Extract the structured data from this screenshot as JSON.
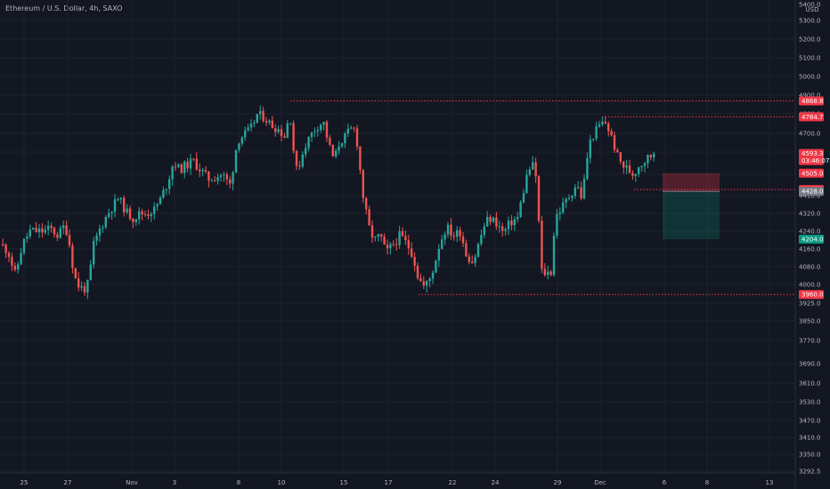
{
  "header": {
    "title": "Ethereum / U.S. Dollar, 4h, SAXO"
  },
  "price_axis": {
    "currency": "USD",
    "ticks": [
      "5400.0",
      "5300.0",
      "5200.0",
      "5100.0",
      "5000.0",
      "4900.0",
      "4800.0",
      "4700.0",
      "4600.0",
      "4500.0",
      "4410.0",
      "4320.0",
      "4240.0",
      "4160.0",
      "4080.0",
      "4000.0",
      "3925.0",
      "3850.0",
      "3770.0",
      "3690.0",
      "3610.0",
      "3530.0",
      "3470.0",
      "3410.0",
      "3350.0",
      "3292.5"
    ]
  },
  "time_axis": {
    "ticks": [
      "25",
      "27",
      "Nov",
      "3",
      "8",
      "10",
      "15",
      "17",
      "22",
      "24",
      "29",
      "Dec",
      "6",
      "8",
      "13"
    ]
  },
  "price_labels": [
    {
      "name": "level-4868",
      "text": "4868.8",
      "color": "#f23645"
    },
    {
      "name": "level-4784",
      "text": "4784.7",
      "color": "#f23645"
    },
    {
      "name": "last-price",
      "text": "4593.3",
      "sub": "03:46:07",
      "color": "#f23645"
    },
    {
      "name": "stop-loss",
      "text": "4505.0",
      "color": "#f23645"
    },
    {
      "name": "level-4435",
      "text": "4435.6",
      "color": "#f23645"
    },
    {
      "name": "entry",
      "text": "4428.0",
      "color": "#787b86"
    },
    {
      "name": "take-profit",
      "text": "4204.0",
      "color": "#089981"
    },
    {
      "name": "level-3960",
      "text": "3960.0",
      "color": "#f23645"
    }
  ],
  "colors": {
    "up": "#26a69a",
    "down": "#ef5350",
    "level": "#f23645",
    "background": "#131722"
  },
  "chart_data": {
    "type": "candlestick",
    "title": "Ethereum / U.S. Dollar, 4h, SAXO",
    "ylabel": "USD",
    "ylim": [
      3292.5,
      5400.0
    ],
    "x_ticks": [
      "25",
      "27",
      "Nov",
      "3",
      "8",
      "10",
      "15",
      "17",
      "22",
      "24",
      "29",
      "Dec",
      "6",
      "8",
      "13"
    ],
    "anchors": [
      {
        "x": 0,
        "close": 4180
      },
      {
        "x": 8,
        "close": 4150
      },
      {
        "x": 16,
        "close": 4040
      },
      {
        "x": 24,
        "close": 4180
      },
      {
        "x": 32,
        "close": 4240
      },
      {
        "x": 40,
        "close": 4240
      },
      {
        "x": 48,
        "close": 4240
      },
      {
        "x": 56,
        "close": 4250
      },
      {
        "x": 64,
        "close": 4220
      },
      {
        "x": 72,
        "close": 4270
      },
      {
        "x": 78,
        "close": 4160
      },
      {
        "x": 82,
        "close": 4040
      },
      {
        "x": 86,
        "close": 4000
      },
      {
        "x": 92,
        "close": 3980
      },
      {
        "x": 98,
        "close": 4000
      },
      {
        "x": 104,
        "close": 4180
      },
      {
        "x": 112,
        "close": 4260
      },
      {
        "x": 120,
        "close": 4320
      },
      {
        "x": 126,
        "close": 4360
      },
      {
        "x": 132,
        "close": 4400
      },
      {
        "x": 140,
        "close": 4330
      },
      {
        "x": 148,
        "close": 4300
      },
      {
        "x": 156,
        "close": 4320
      },
      {
        "x": 164,
        "close": 4320
      },
      {
        "x": 172,
        "close": 4340
      },
      {
        "x": 180,
        "close": 4400
      },
      {
        "x": 188,
        "close": 4480
      },
      {
        "x": 194,
        "close": 4560
      },
      {
        "x": 200,
        "close": 4520
      },
      {
        "x": 208,
        "close": 4540
      },
      {
        "x": 216,
        "close": 4560
      },
      {
        "x": 224,
        "close": 4520
      },
      {
        "x": 232,
        "close": 4480
      },
      {
        "x": 240,
        "close": 4490
      },
      {
        "x": 248,
        "close": 4500
      },
      {
        "x": 254,
        "close": 4470
      },
      {
        "x": 258,
        "close": 4450
      },
      {
        "x": 262,
        "close": 4580
      },
      {
        "x": 266,
        "close": 4660
      },
      {
        "x": 272,
        "close": 4690
      },
      {
        "x": 280,
        "close": 4720
      },
      {
        "x": 288,
        "close": 4800
      },
      {
        "x": 296,
        "close": 4780
      },
      {
        "x": 304,
        "close": 4740
      },
      {
        "x": 312,
        "close": 4720
      },
      {
        "x": 318,
        "close": 4680
      },
      {
        "x": 322,
        "close": 4760
      },
      {
        "x": 326,
        "close": 4780
      },
      {
        "x": 330,
        "close": 4500
      },
      {
        "x": 336,
        "close": 4560
      },
      {
        "x": 342,
        "close": 4640
      },
      {
        "x": 350,
        "close": 4710
      },
      {
        "x": 356,
        "close": 4740
      },
      {
        "x": 362,
        "close": 4760
      },
      {
        "x": 368,
        "close": 4640
      },
      {
        "x": 374,
        "close": 4560
      },
      {
        "x": 380,
        "close": 4650
      },
      {
        "x": 386,
        "close": 4680
      },
      {
        "x": 392,
        "close": 4720
      },
      {
        "x": 398,
        "close": 4720
      },
      {
        "x": 402,
        "close": 4560
      },
      {
        "x": 406,
        "close": 4420
      },
      {
        "x": 410,
        "close": 4320
      },
      {
        "x": 414,
        "close": 4240
      },
      {
        "x": 420,
        "close": 4200
      },
      {
        "x": 426,
        "close": 4220
      },
      {
        "x": 432,
        "close": 4140
      },
      {
        "x": 440,
        "close": 4180
      },
      {
        "x": 448,
        "close": 4220
      },
      {
        "x": 456,
        "close": 4180
      },
      {
        "x": 462,
        "close": 4140
      },
      {
        "x": 468,
        "close": 4040
      },
      {
        "x": 474,
        "close": 3990
      },
      {
        "x": 480,
        "close": 4010
      },
      {
        "x": 486,
        "close": 4080
      },
      {
        "x": 492,
        "close": 4180
      },
      {
        "x": 500,
        "close": 4260
      },
      {
        "x": 508,
        "close": 4220
      },
      {
        "x": 516,
        "close": 4240
      },
      {
        "x": 522,
        "close": 4140
      },
      {
        "x": 530,
        "close": 4100
      },
      {
        "x": 536,
        "close": 4180
      },
      {
        "x": 542,
        "close": 4260
      },
      {
        "x": 548,
        "close": 4300
      },
      {
        "x": 556,
        "close": 4280
      },
      {
        "x": 564,
        "close": 4230
      },
      {
        "x": 572,
        "close": 4280
      },
      {
        "x": 580,
        "close": 4300
      },
      {
        "x": 586,
        "close": 4420
      },
      {
        "x": 592,
        "close": 4520
      },
      {
        "x": 598,
        "close": 4540
      },
      {
        "x": 602,
        "close": 4460
      },
      {
        "x": 606,
        "close": 4060
      },
      {
        "x": 612,
        "close": 4050
      },
      {
        "x": 618,
        "close": 4060
      },
      {
        "x": 622,
        "close": 4300
      },
      {
        "x": 628,
        "close": 4340
      },
      {
        "x": 634,
        "close": 4380
      },
      {
        "x": 640,
        "close": 4420
      },
      {
        "x": 646,
        "close": 4460
      },
      {
        "x": 652,
        "close": 4400
      },
      {
        "x": 656,
        "close": 4500
      },
      {
        "x": 660,
        "close": 4640
      },
      {
        "x": 666,
        "close": 4700
      },
      {
        "x": 672,
        "close": 4740
      },
      {
        "x": 678,
        "close": 4760
      },
      {
        "x": 684,
        "close": 4700
      },
      {
        "x": 688,
        "close": 4640
      },
      {
        "x": 692,
        "close": 4580
      },
      {
        "x": 698,
        "close": 4540
      },
      {
        "x": 704,
        "close": 4520
      },
      {
        "x": 710,
        "close": 4500
      },
      {
        "x": 716,
        "close": 4540
      },
      {
        "x": 722,
        "close": 4560
      },
      {
        "x": 728,
        "close": 4580
      },
      {
        "x": 734,
        "close": 4593.3
      }
    ],
    "levels": [
      {
        "price": 4868.8,
        "label": "4868.8"
      },
      {
        "price": 4784.7,
        "label": "4784.7"
      },
      {
        "price": 4435.6,
        "label": "4435.6"
      },
      {
        "price": 3960.0,
        "label": "3960.0"
      }
    ],
    "position": {
      "type": "short",
      "stop": 4505.0,
      "entry": 4428.0,
      "target": 4204.0
    },
    "last_price": 4593.3
  }
}
